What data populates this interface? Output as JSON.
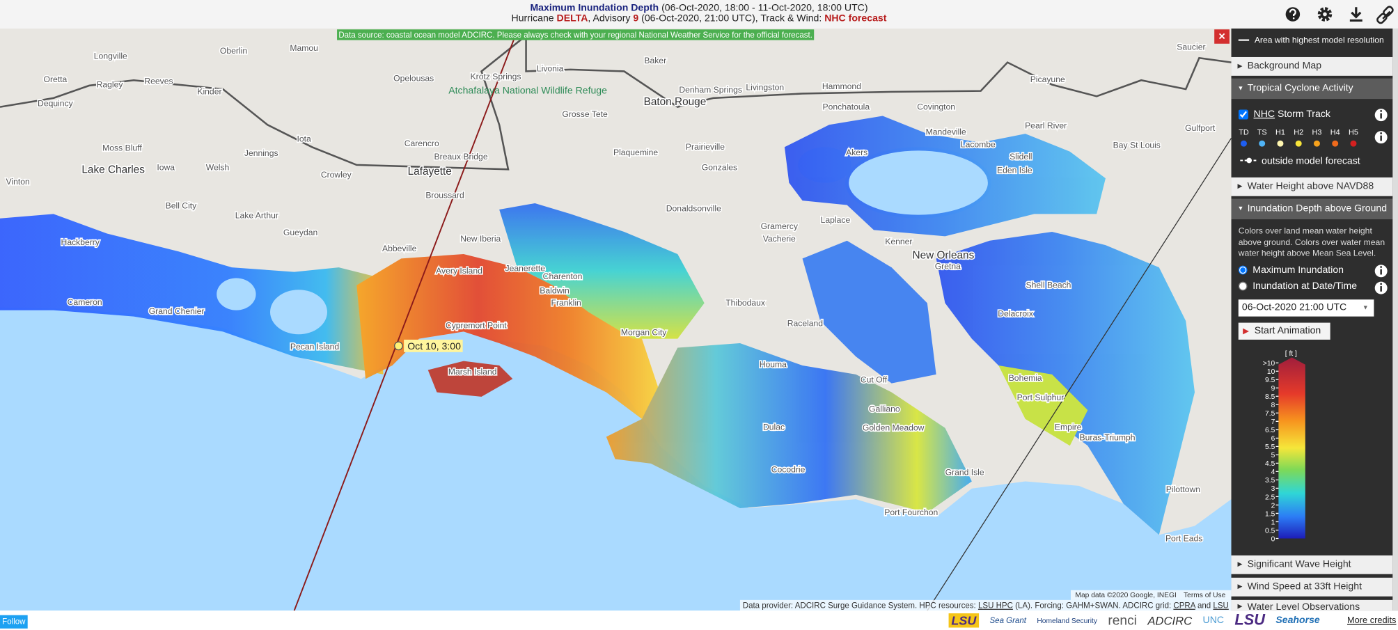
{
  "header": {
    "title": "Maximum Inundation Depth",
    "period": " (06-Oct-2020, 18:00 - 11-Oct-2020, 18:00 UTC)",
    "line2": [
      "Hurricane ",
      "DELTA",
      ", Advisory ",
      "9",
      " (06-Oct-2020, 21:00 UTC), Track & Wind: ",
      "NHC forecast"
    ]
  },
  "map": {
    "banner": "Data source: coastal ocean model ADCIRC. Please always check with your regional National Weather Service for the official forecast.",
    "storm_label": "Oct 10, 3:00",
    "attribution": "Map data ©2020 Google, INEGI",
    "terms": "Terms of Use",
    "provider": [
      "Data provider: ADCIRC Surge Guidance System. HPC resources: ",
      "LSU HPC",
      " (LA). Forcing: GAHM+SWAN. ADCIRC grid: ",
      "CPRA",
      " and ",
      "LSU CCR"
    ],
    "places": [
      "Oberlin",
      "Mamou",
      "Longville",
      "Oretta",
      "Ragley",
      "Reeves",
      "Kinder",
      "Opelousas",
      "Krotz Springs",
      "Livonia",
      "Baker",
      "Denham Springs",
      "Livingston",
      "Hammond",
      "Ponchatoula",
      "Baton Rouge",
      "Grosse Tete",
      "Dequincy",
      "Moss Bluff",
      "Lake Charles",
      "Vinton",
      "Iowa",
      "Welsh",
      "Jennings",
      "Iota",
      "Crowley",
      "Carencro",
      "Breaux Bridge",
      "Lafayette",
      "Plaquemine",
      "Prairieville",
      "Gonzales",
      "Broussard",
      "Bell City",
      "Lake Arthur",
      "Donaldsonville",
      "Gramercy",
      "Vacherie",
      "Laplace",
      "Gueydan",
      "Hackberry",
      "Abbeville",
      "New Iberia",
      "Kenner",
      "New Orleans",
      "Gretna",
      "Avery Island",
      "Jeanerette",
      "Charenton",
      "Baldwin",
      "Franklin",
      "Cameron",
      "Grand Chenier",
      "Pecan Island",
      "Thibodaux",
      "Raceland",
      "Morgan City",
      "Cypremort Point",
      "Marsh Island",
      "Houma",
      "Cut Off",
      "Galliano",
      "Golden Meadow",
      "Dulac",
      "Cocodrie",
      "Grand Isle",
      "Port Fourchon",
      "Bohemia",
      "Port Sulphur",
      "Empire",
      "Buras-Triumph",
      "Pilottown",
      "Port Eads",
      "Delacroix",
      "Shell Beach",
      "Mandeville",
      "Lacombe",
      "Slidell",
      "Eden Isle",
      "Covington",
      "Pearl River",
      "Picayune",
      "Saucier",
      "Gulfport",
      "Bay St Louis",
      "Akers"
    ],
    "refuge": "Atchafalaya National Wildlife Refuge"
  },
  "sidebar": {
    "resolution": "Area with highest model resolution",
    "background_map": "Background Map",
    "cyclone": "Tropical Cyclone Activity",
    "nhc": "NHC",
    "storm_track": " Storm Track",
    "categories": [
      "TD",
      "TS",
      "H1",
      "H2",
      "H3",
      "H4",
      "H5"
    ],
    "outside": "outside model forecast",
    "water_height": "Water Height above NAVD88",
    "inundation": "Inundation Depth above Ground",
    "description": "Colors over land mean water height above ground. Colors over water mean water height above Mean Sea Level.",
    "max_inundation": "Maximum Inundation",
    "inundation_date": "Inundation at Date/Time",
    "date": "06-Oct-2020 21:00 UTC",
    "start": "Start Animation",
    "unit": "[ ft ]",
    "ticks": [
      ">10",
      "10",
      "9.5",
      "9",
      "8.5",
      "8",
      "7.5",
      "7",
      "6.5",
      "6",
      "5.5",
      "5",
      "4.5",
      "4",
      "3.5",
      "3",
      "2.5",
      "2",
      "1.5",
      "1",
      "0.5",
      "0"
    ],
    "wave": "Significant Wave Height",
    "wind": "Wind Speed at 33ft Height",
    "observations": "Water Level Observations"
  },
  "footer": {
    "follow": "Follow",
    "logos": [
      "LSU",
      "Sea Grant",
      "Homeland Security",
      "renci",
      "ADCIRC",
      "UNC",
      "LSU",
      "Seahorse"
    ],
    "credits": "More credits"
  }
}
